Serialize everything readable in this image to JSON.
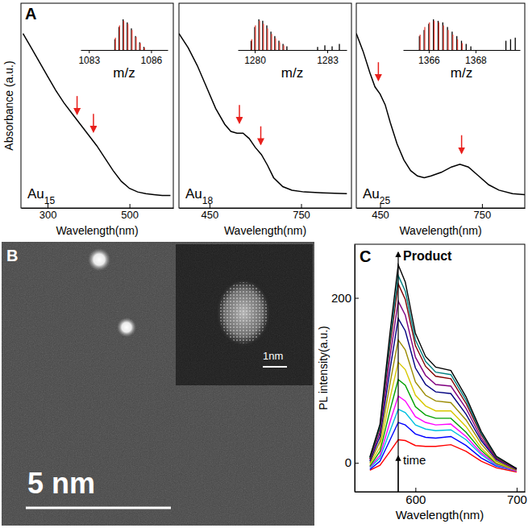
{
  "panel_labels": [
    "A",
    "B",
    "C"
  ],
  "image": {
    "scale_bar": "5 nm",
    "inset_scale_bar": "1nm"
  },
  "chart_data": [
    {
      "type": "line",
      "title": "Au15",
      "xlabel": "Wavelength(nm)",
      "ylabel": "Absorbance (a.u.)",
      "x": [
        240,
        260,
        280,
        300,
        320,
        340,
        360,
        380,
        400,
        420,
        440,
        460,
        480,
        500,
        520,
        540,
        560,
        580,
        600
      ],
      "values": [
        0.98,
        0.9,
        0.82,
        0.74,
        0.66,
        0.59,
        0.53,
        0.47,
        0.41,
        0.35,
        0.28,
        0.21,
        0.15,
        0.11,
        0.09,
        0.08,
        0.075,
        0.07,
        0.07
      ],
      "color": "#000000",
      "xlim": [
        235,
        607
      ],
      "xticks": [
        300,
        500
      ],
      "ylim": [
        0,
        1.15
      ],
      "tick_labels": "x",
      "arrows": {
        "x": [
          372,
          412
        ],
        "y": [
          0.52,
          0.42
        ],
        "color": "#e8201c"
      }
    },
    {
      "type": "line",
      "title": "Au18",
      "xlabel": "Wavelength(nm)",
      "x": [
        350,
        380,
        410,
        440,
        470,
        500,
        520,
        540,
        560,
        580,
        600,
        620,
        640,
        660,
        690,
        720,
        760,
        820,
        900
      ],
      "values": [
        0.98,
        0.9,
        0.8,
        0.68,
        0.56,
        0.47,
        0.43,
        0.42,
        0.42,
        0.39,
        0.34,
        0.3,
        0.24,
        0.17,
        0.12,
        0.1,
        0.09,
        0.085,
        0.08
      ],
      "color": "#000000",
      "xlim": [
        350,
        915
      ],
      "xticks": [
        450,
        750
      ],
      "ylim": [
        0,
        1.15
      ],
      "tick_labels": "x",
      "arrows": {
        "x": [
          548,
          618
        ],
        "y": [
          0.47,
          0.35
        ],
        "color": "#e8201c"
      }
    },
    {
      "type": "line",
      "title": "Au25",
      "xlabel": "Wavelength(nm)",
      "x": [
        380,
        400,
        420,
        435,
        450,
        465,
        480,
        500,
        520,
        540,
        560,
        580,
        600,
        630,
        660,
        685,
        710,
        740,
        770,
        800,
        840,
        876
      ],
      "values": [
        0.98,
        0.88,
        0.76,
        0.68,
        0.64,
        0.58,
        0.48,
        0.36,
        0.27,
        0.21,
        0.18,
        0.17,
        0.18,
        0.2,
        0.23,
        0.245,
        0.23,
        0.18,
        0.13,
        0.1,
        0.08,
        0.075
      ],
      "color": "#000000",
      "xlim": [
        380,
        876
      ],
      "xticks": [
        450,
        750
      ],
      "ylim": [
        0,
        1.15
      ],
      "tick_labels": "x",
      "arrows": {
        "x": [
          445,
          690
        ],
        "y": [
          0.71,
          0.3
        ],
        "color": "#e8201c"
      }
    },
    {
      "type": "stem",
      "xlabel": "m/z",
      "xlim": [
        1082.6,
        1086.8
      ],
      "xticks": [
        1083,
        1086
      ],
      "ylim": [
        0,
        1.05
      ],
      "tick_labels": "x",
      "series": [
        {
          "color": "#000000",
          "x": [
            1084.25,
            1084.45,
            1084.65,
            1084.85,
            1085.05,
            1085.25,
            1085.45,
            1085.65
          ],
          "values": [
            0.35,
            0.75,
            1.0,
            0.9,
            0.7,
            0.45,
            0.25,
            0.1
          ]
        },
        {
          "color": "#e8463c",
          "x": [
            1084.28,
            1084.48,
            1084.68,
            1084.88,
            1085.08,
            1085.28,
            1085.48,
            1085.68
          ],
          "values": [
            0.4,
            0.8,
            0.95,
            0.85,
            0.65,
            0.42,
            0.22,
            0.08
          ]
        }
      ]
    },
    {
      "type": "stem",
      "xlabel": "m/z",
      "xlim": [
        1279.3,
        1283.8
      ],
      "xticks": [
        1280,
        1283
      ],
      "ylim": [
        0,
        1.05
      ],
      "tick_labels": "x",
      "series": [
        {
          "color": "#000000",
          "x": [
            1279.85,
            1280.0,
            1280.17,
            1280.33,
            1280.5,
            1280.67,
            1280.83,
            1281.0,
            1281.17,
            1281.33,
            1282.6,
            1282.9,
            1283.2,
            1283.5
          ],
          "values": [
            0.3,
            0.75,
            1.0,
            0.95,
            0.8,
            0.6,
            0.45,
            0.3,
            0.2,
            0.12,
            0.1,
            0.15,
            0.12,
            0.2
          ]
        },
        {
          "color": "#e8463c",
          "x": [
            1279.88,
            1280.03,
            1280.2,
            1280.36,
            1280.53,
            1280.7,
            1280.86,
            1281.03,
            1281.2
          ],
          "values": [
            0.35,
            0.8,
            0.95,
            0.85,
            0.7,
            0.52,
            0.38,
            0.25,
            0.15
          ]
        }
      ]
    },
    {
      "type": "stem",
      "xlabel": "m/z",
      "xlim": [
        1364.9,
        1369.9
      ],
      "xticks": [
        1366,
        1368
      ],
      "ylim": [
        0,
        1.05
      ],
      "tick_labels": "x",
      "series": [
        {
          "color": "#000000",
          "x": [
            1365.6,
            1365.8,
            1366.0,
            1366.2,
            1366.4,
            1366.6,
            1366.8,
            1367.0,
            1367.2,
            1367.4,
            1367.6,
            1367.8,
            1369.3,
            1369.5,
            1369.7
          ],
          "values": [
            0.45,
            0.65,
            0.85,
            1.0,
            0.95,
            0.9,
            0.75,
            0.6,
            0.45,
            0.3,
            0.2,
            0.12,
            0.3,
            0.35,
            0.4
          ]
        },
        {
          "color": "#e8463c",
          "x": [
            1365.63,
            1365.83,
            1366.03,
            1366.23,
            1366.43,
            1366.63,
            1366.83,
            1367.03,
            1367.23,
            1367.43
          ],
          "values": [
            0.5,
            0.75,
            0.9,
            0.95,
            0.9,
            0.8,
            0.65,
            0.5,
            0.35,
            0.22
          ]
        }
      ]
    },
    {
      "type": "line",
      "xlabel": "Wavelength(nm)",
      "ylabel": "PL intensity(a.u.)",
      "x": [
        555,
        565,
        575,
        583,
        590,
        600,
        610,
        620,
        635,
        650,
        665,
        680,
        700
      ],
      "series": [
        {
          "color": "#ff0000",
          "values": [
            -9,
            -3,
            14,
            28,
            27,
            21,
            20,
            20,
            22,
            14,
            2,
            -6,
            -11
          ]
        },
        {
          "color": "#0000ff",
          "values": [
            -8,
            2,
            28,
            49,
            46,
            35,
            31,
            30,
            32,
            21,
            6,
            -4,
            -10
          ]
        },
        {
          "color": "#00c0e0",
          "values": [
            -6,
            6,
            39,
            65,
            61,
            46,
            41,
            39,
            40,
            28,
            10,
            -3,
            -10
          ]
        },
        {
          "color": "#ff00ff",
          "values": [
            -5,
            9,
            50,
            81,
            75,
            56,
            49,
            46,
            47,
            32,
            12,
            -2,
            -10
          ]
        },
        {
          "color": "#00a000",
          "values": [
            -4,
            14,
            64,
            101,
            94,
            68,
            58,
            54,
            54,
            37,
            15,
            -1,
            -9
          ]
        },
        {
          "color": "#d8c800",
          "values": [
            -2,
            19,
            79,
            122,
            113,
            82,
            69,
            63,
            63,
            44,
            18,
            0,
            -9
          ]
        },
        {
          "color": "#9a8a00",
          "values": [
            0,
            26,
            97,
            149,
            137,
            98,
            82,
            75,
            73,
            52,
            23,
            2,
            -9
          ]
        },
        {
          "color": "#000080",
          "values": [
            2,
            32,
            114,
            175,
            160,
            115,
            95,
            86,
            84,
            59,
            27,
            4,
            -8
          ]
        },
        {
          "color": "#800080",
          "values": [
            4,
            37,
            129,
            196,
            179,
            128,
            106,
            95,
            93,
            66,
            30,
            5,
            -8
          ]
        },
        {
          "color": "#800000",
          "values": [
            5,
            42,
            143,
            217,
            198,
            142,
            117,
            105,
            102,
            72,
            34,
            6,
            -7
          ]
        },
        {
          "color": "#008080",
          "values": [
            6,
            44,
            150,
            227,
            208,
            149,
            123,
            110,
            107,
            76,
            36,
            7,
            -7
          ]
        },
        {
          "color": "#000000",
          "values": [
            7,
            47,
            159,
            240,
            219,
            157,
            129,
            116,
            112,
            80,
            38,
            8,
            -7
          ]
        }
      ],
      "xlim": [
        540,
        708
      ],
      "xticks": [
        600,
        700
      ],
      "ylim": [
        -35,
        265
      ],
      "yticks": [
        0,
        200
      ],
      "annotations": [
        {
          "text": "Product",
          "x": 583,
          "y": 255
        },
        {
          "text": "time",
          "x": 583,
          "y": 8
        }
      ]
    }
  ]
}
